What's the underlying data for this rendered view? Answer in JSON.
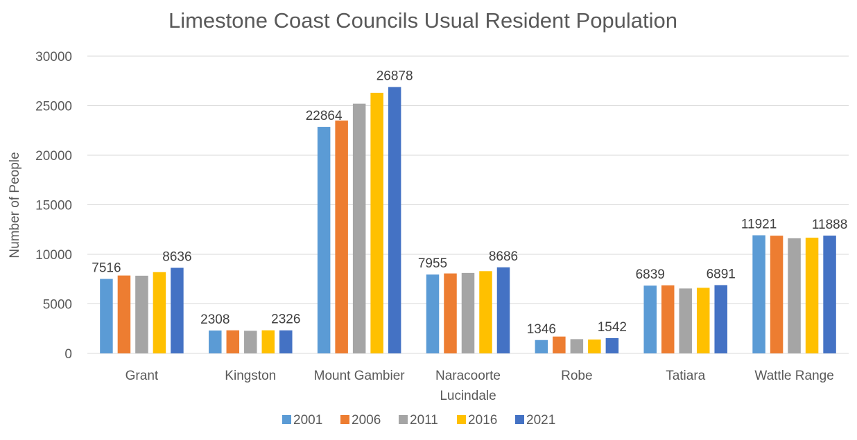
{
  "chart_data": {
    "type": "bar",
    "title": "Limestone Coast Councils Usual Resident Population",
    "ylabel": "Number of People",
    "xlabel": "",
    "ylim": [
      0,
      30000
    ],
    "yticks": [
      0,
      5000,
      10000,
      15000,
      20000,
      25000,
      30000
    ],
    "grid": true,
    "legend": "bottom",
    "categories": [
      [
        "Grant"
      ],
      [
        "Kingston"
      ],
      [
        "Mount Gambier"
      ],
      [
        "Naracoorte",
        "Lucindale"
      ],
      [
        "Robe"
      ],
      [
        "Tatiara"
      ],
      [
        "Wattle Range"
      ]
    ],
    "series": [
      {
        "name": "2001",
        "color": "#5b9bd5",
        "values": [
          7516,
          2308,
          22864,
          7955,
          1346,
          6839,
          11921
        ],
        "labels": [
          "7516",
          "2308",
          "22864",
          "7955",
          "1346",
          "6839",
          "11921"
        ]
      },
      {
        "name": "2006",
        "color": "#ed7d31",
        "values": [
          7860,
          2330,
          23500,
          8070,
          1700,
          6870,
          11880
        ],
        "labels": [
          "",
          "",
          "",
          "",
          "",
          "",
          ""
        ]
      },
      {
        "name": "2011",
        "color": "#a5a5a5",
        "values": [
          7840,
          2280,
          25200,
          8120,
          1440,
          6550,
          11620
        ],
        "labels": [
          "",
          "",
          "",
          "",
          "",
          "",
          ""
        ]
      },
      {
        "name": "2016",
        "color": "#ffc000",
        "values": [
          8200,
          2330,
          26300,
          8300,
          1400,
          6620,
          11680
        ],
        "labels": [
          "",
          "",
          "",
          "",
          "",
          "",
          ""
        ]
      },
      {
        "name": "2021",
        "color": "#4472c4",
        "values": [
          8636,
          2326,
          26878,
          8686,
          1542,
          6891,
          11888
        ],
        "labels": [
          "8636",
          "2326",
          "26878",
          "8686",
          "1542",
          "6891",
          "11888"
        ]
      }
    ]
  }
}
